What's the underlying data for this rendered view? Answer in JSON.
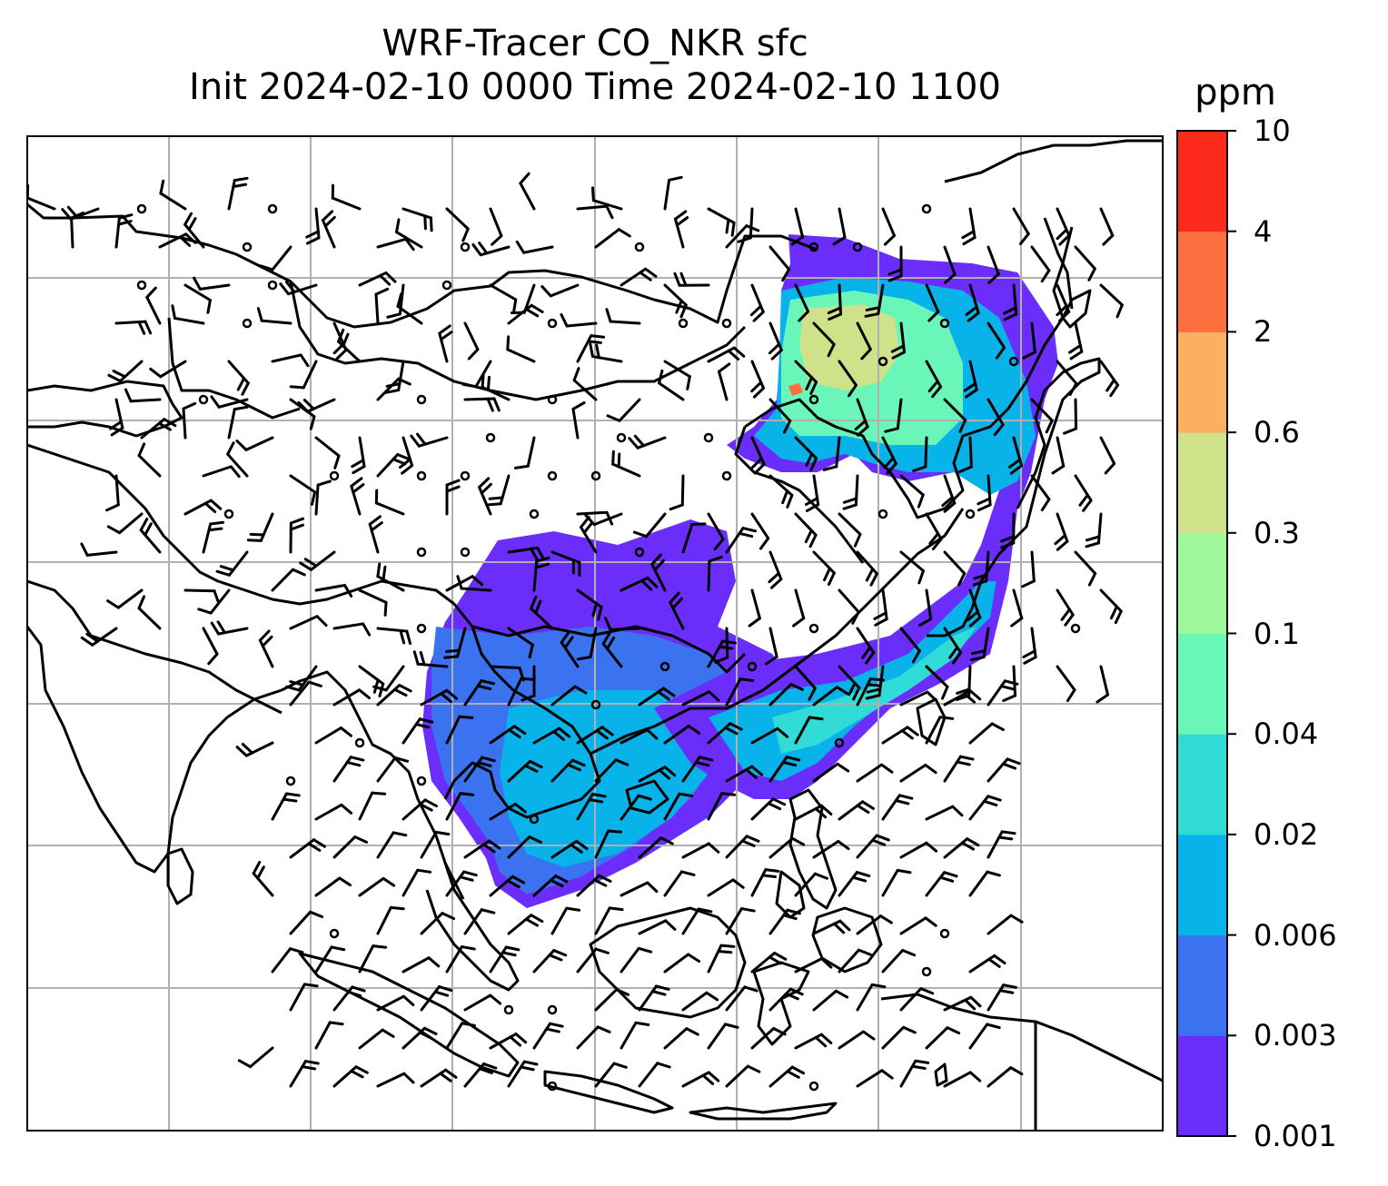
{
  "title": {
    "line1": "WRF-Tracer CO_NKR sfc",
    "line2": "Init 2024-02-10 0000 Time 2024-02-10 1100"
  },
  "colorbar": {
    "unit": "ppm",
    "levels": [
      "0.001",
      "0.003",
      "0.006",
      "0.02",
      "0.04",
      "0.1",
      "0.3",
      "0.6",
      "2",
      "4",
      "10"
    ],
    "colors": [
      "#6a2dfa",
      "#3a72f0",
      "#08b3ea",
      "#31dcd6",
      "#6af6b8",
      "#9df89a",
      "#cfe189",
      "#fbb060",
      "#fc7040",
      "#fb2a1a"
    ]
  },
  "map": {
    "grid": true,
    "coastline_color": "#000000",
    "tracer_plumes": [
      "Northeast China / Korea plume",
      "Southern China to Vietnam plume",
      "Eastward ocean plume"
    ]
  }
}
